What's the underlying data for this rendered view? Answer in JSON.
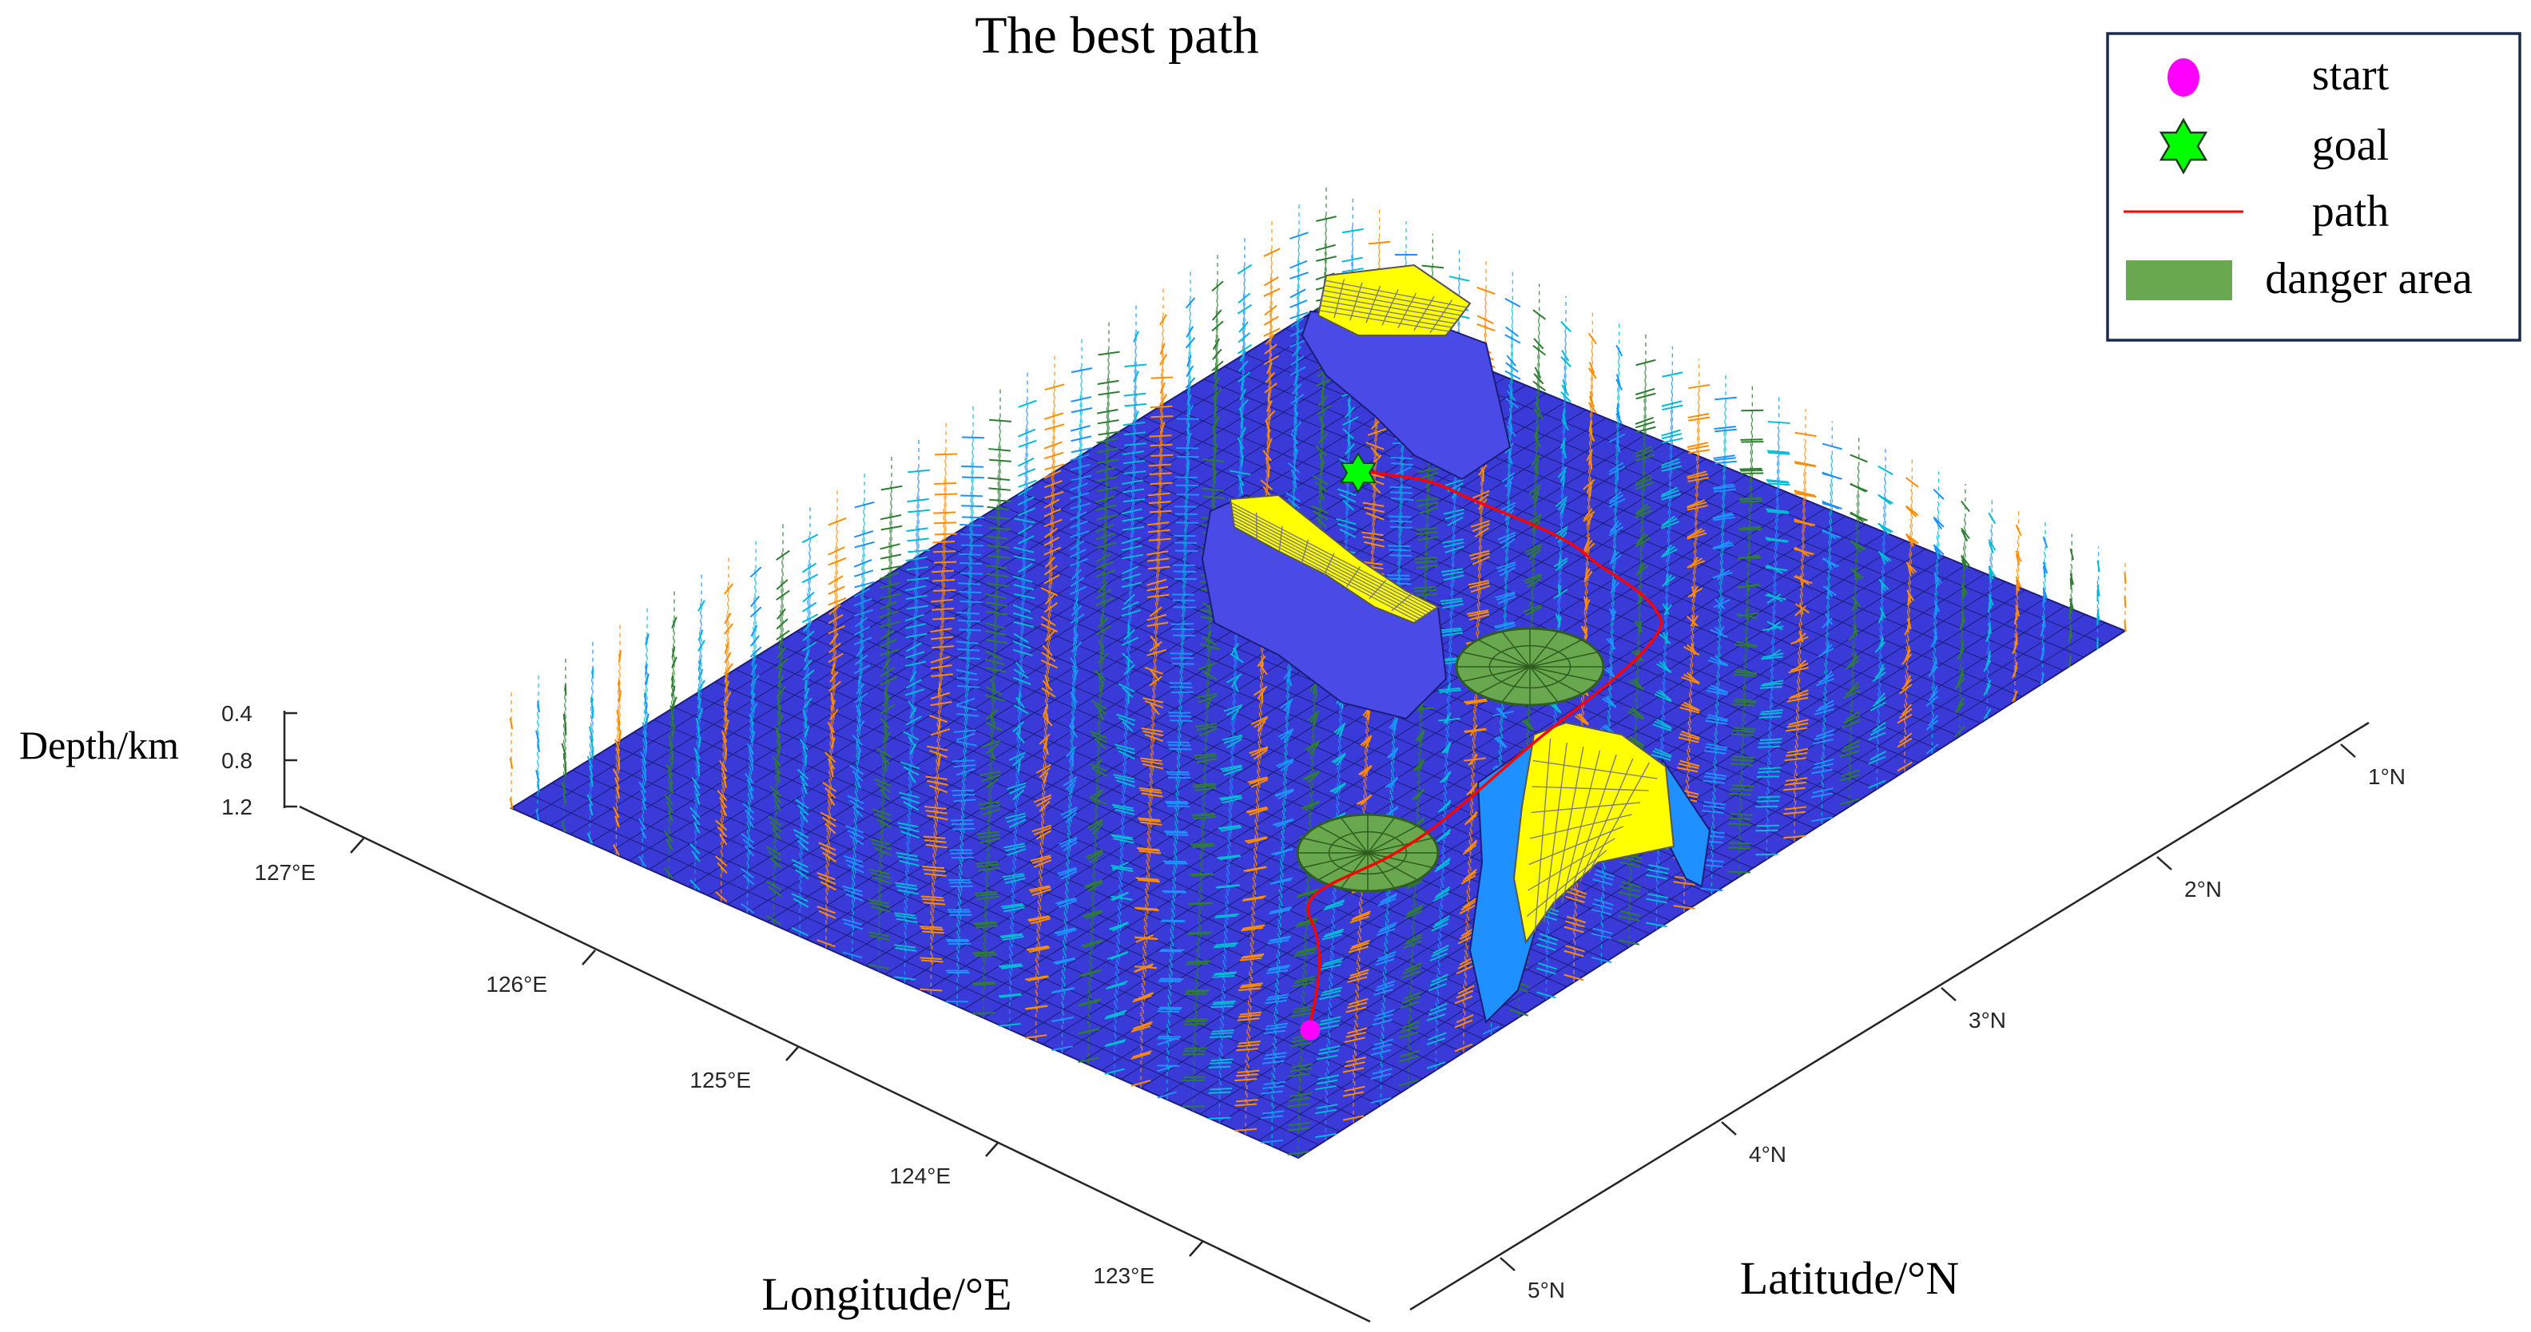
{
  "chart_data": {
    "type": "surface",
    "title": "The best path",
    "xlabel": "Longitude/°E",
    "ylabel": "Latitude/°N",
    "zlabel": "Depth/km",
    "x_ticks": [
      "123°E",
      "124°E",
      "125°E",
      "126°E",
      "127°E"
    ],
    "y_ticks": [
      "5°N",
      "4°N",
      "3°N",
      "2°N",
      "1°N"
    ],
    "z_ticks": [
      "0.4",
      "0.8",
      "1.2"
    ],
    "legend": {
      "position": "top-right",
      "entries": [
        {
          "name": "start",
          "marker": "circle",
          "color": "#ff00ff"
        },
        {
          "name": "goal",
          "marker": "hexagram",
          "color": "#00ff00"
        },
        {
          "name": "path",
          "marker": "line",
          "color": "#ff0000"
        },
        {
          "name": "danger area",
          "marker": "patch",
          "color": "#6aa84f"
        }
      ]
    },
    "colors": {
      "seabed": "#3a3ad8",
      "seabed_edge": "#1c1c7a",
      "obstacle_top": "#ffff00",
      "obstacle_side": "#4a4ae6",
      "danger": "#6aa84f",
      "current_field": [
        "#ff8c00",
        "#00bcd4",
        "#2e7d32",
        "#1e90ff"
      ]
    },
    "path_color": "#ff0000",
    "start_color": "#ff00ff",
    "goal_color": "#00ff00"
  }
}
